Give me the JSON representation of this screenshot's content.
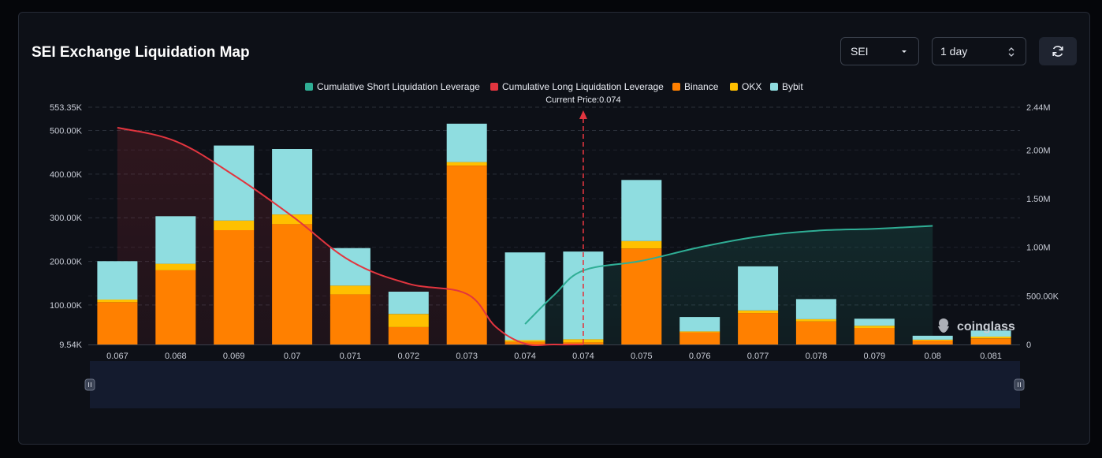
{
  "header": {
    "title": "SEI Exchange Liquidation Map",
    "coin_select": {
      "value": "SEI"
    },
    "range_select": {
      "value": "1 day"
    }
  },
  "colors": {
    "binance": "#ff8000",
    "okx": "#ffc000",
    "bybit": "#8fdde0",
    "long": "#e2353f",
    "short": "#2fae95",
    "grid": "#2a2f3a",
    "axis_text": "#c8ccd6"
  },
  "watermark": "coinglass",
  "chart_data": {
    "type": "bar",
    "title": "SEI Exchange Liquidation Map",
    "current_price_label": "Current Price:0.074",
    "current_price_index": 8,
    "legend": [
      {
        "name": "Cumulative Short Liquidation Leverage",
        "color": "#2fae95"
      },
      {
        "name": "Cumulative Long Liquidation Leverage",
        "color": "#e2353f"
      },
      {
        "name": "Binance",
        "color": "#ff8000"
      },
      {
        "name": "OKX",
        "color": "#ffc000"
      },
      {
        "name": "Bybit",
        "color": "#8fdde0"
      }
    ],
    "categories": [
      "0.067",
      "0.068",
      "0.069",
      "0.07",
      "0.071",
      "0.072",
      "0.073",
      "0.074",
      "0.074",
      "0.075",
      "0.076",
      "0.077",
      "0.078",
      "0.079",
      "0.08",
      "0.081"
    ],
    "series": [
      {
        "name": "Binance",
        "stack": "exchanges",
        "values": [
          97000,
          170000,
          262000,
          276000,
          115000,
          40000,
          410000,
          6000,
          5000,
          220000,
          28000,
          72000,
          53000,
          38000,
          9000,
          14000
        ]
      },
      {
        "name": "OKX",
        "stack": "exchanges",
        "values": [
          6000,
          15000,
          22000,
          22000,
          20000,
          30000,
          8000,
          4000,
          7000,
          17000,
          2000,
          6000,
          5000,
          5000,
          2000,
          4000
        ]
      },
      {
        "name": "Bybit",
        "stack": "exchanges",
        "values": [
          88000,
          109000,
          172000,
          150000,
          86000,
          51000,
          88000,
          201000,
          201000,
          140000,
          33000,
          101000,
          46000,
          16000,
          9000,
          14000
        ]
      }
    ],
    "cumulative_long": [
      {
        "x": 0.067,
        "y": 2230000
      },
      {
        "x": 0.068,
        "y": 2090000
      },
      {
        "x": 0.069,
        "y": 1740000
      },
      {
        "x": 0.07,
        "y": 1320000
      },
      {
        "x": 0.071,
        "y": 860000
      },
      {
        "x": 0.072,
        "y": 625000
      },
      {
        "x": 0.073,
        "y": 520000
      },
      {
        "x": 0.0735,
        "y": 180000
      },
      {
        "x": 0.074,
        "y": 8000
      },
      {
        "x": 0.0745,
        "y": 0
      },
      {
        "x": 0.075,
        "y": 0
      }
    ],
    "cumulative_short": [
      {
        "x": 0.074,
        "y": 210000
      },
      {
        "x": 0.0745,
        "y": 510000
      },
      {
        "x": 0.075,
        "y": 760000
      },
      {
        "x": 0.076,
        "y": 860000
      },
      {
        "x": 0.077,
        "y": 1000000
      },
      {
        "x": 0.078,
        "y": 1110000
      },
      {
        "x": 0.079,
        "y": 1170000
      },
      {
        "x": 0.08,
        "y": 1190000
      },
      {
        "x": 0.081,
        "y": 1220000
      }
    ],
    "left_axis": {
      "min": 9540,
      "max": 553350,
      "ticks": [
        9540,
        100000,
        200000,
        300000,
        400000,
        500000,
        553350
      ],
      "tick_labels": [
        "9.54K",
        "100.00K",
        "200.00K",
        "300.00K",
        "400.00K",
        "500.00K",
        "553.35K"
      ]
    },
    "right_axis": {
      "min": 0,
      "max": 2440000,
      "ticks": [
        0,
        500000,
        1000000,
        1500000,
        2000000,
        2440000
      ],
      "tick_labels": [
        "0",
        "500.00K",
        "1.00M",
        "1.50M",
        "2.00M",
        "2.44M"
      ]
    },
    "grid": true
  }
}
